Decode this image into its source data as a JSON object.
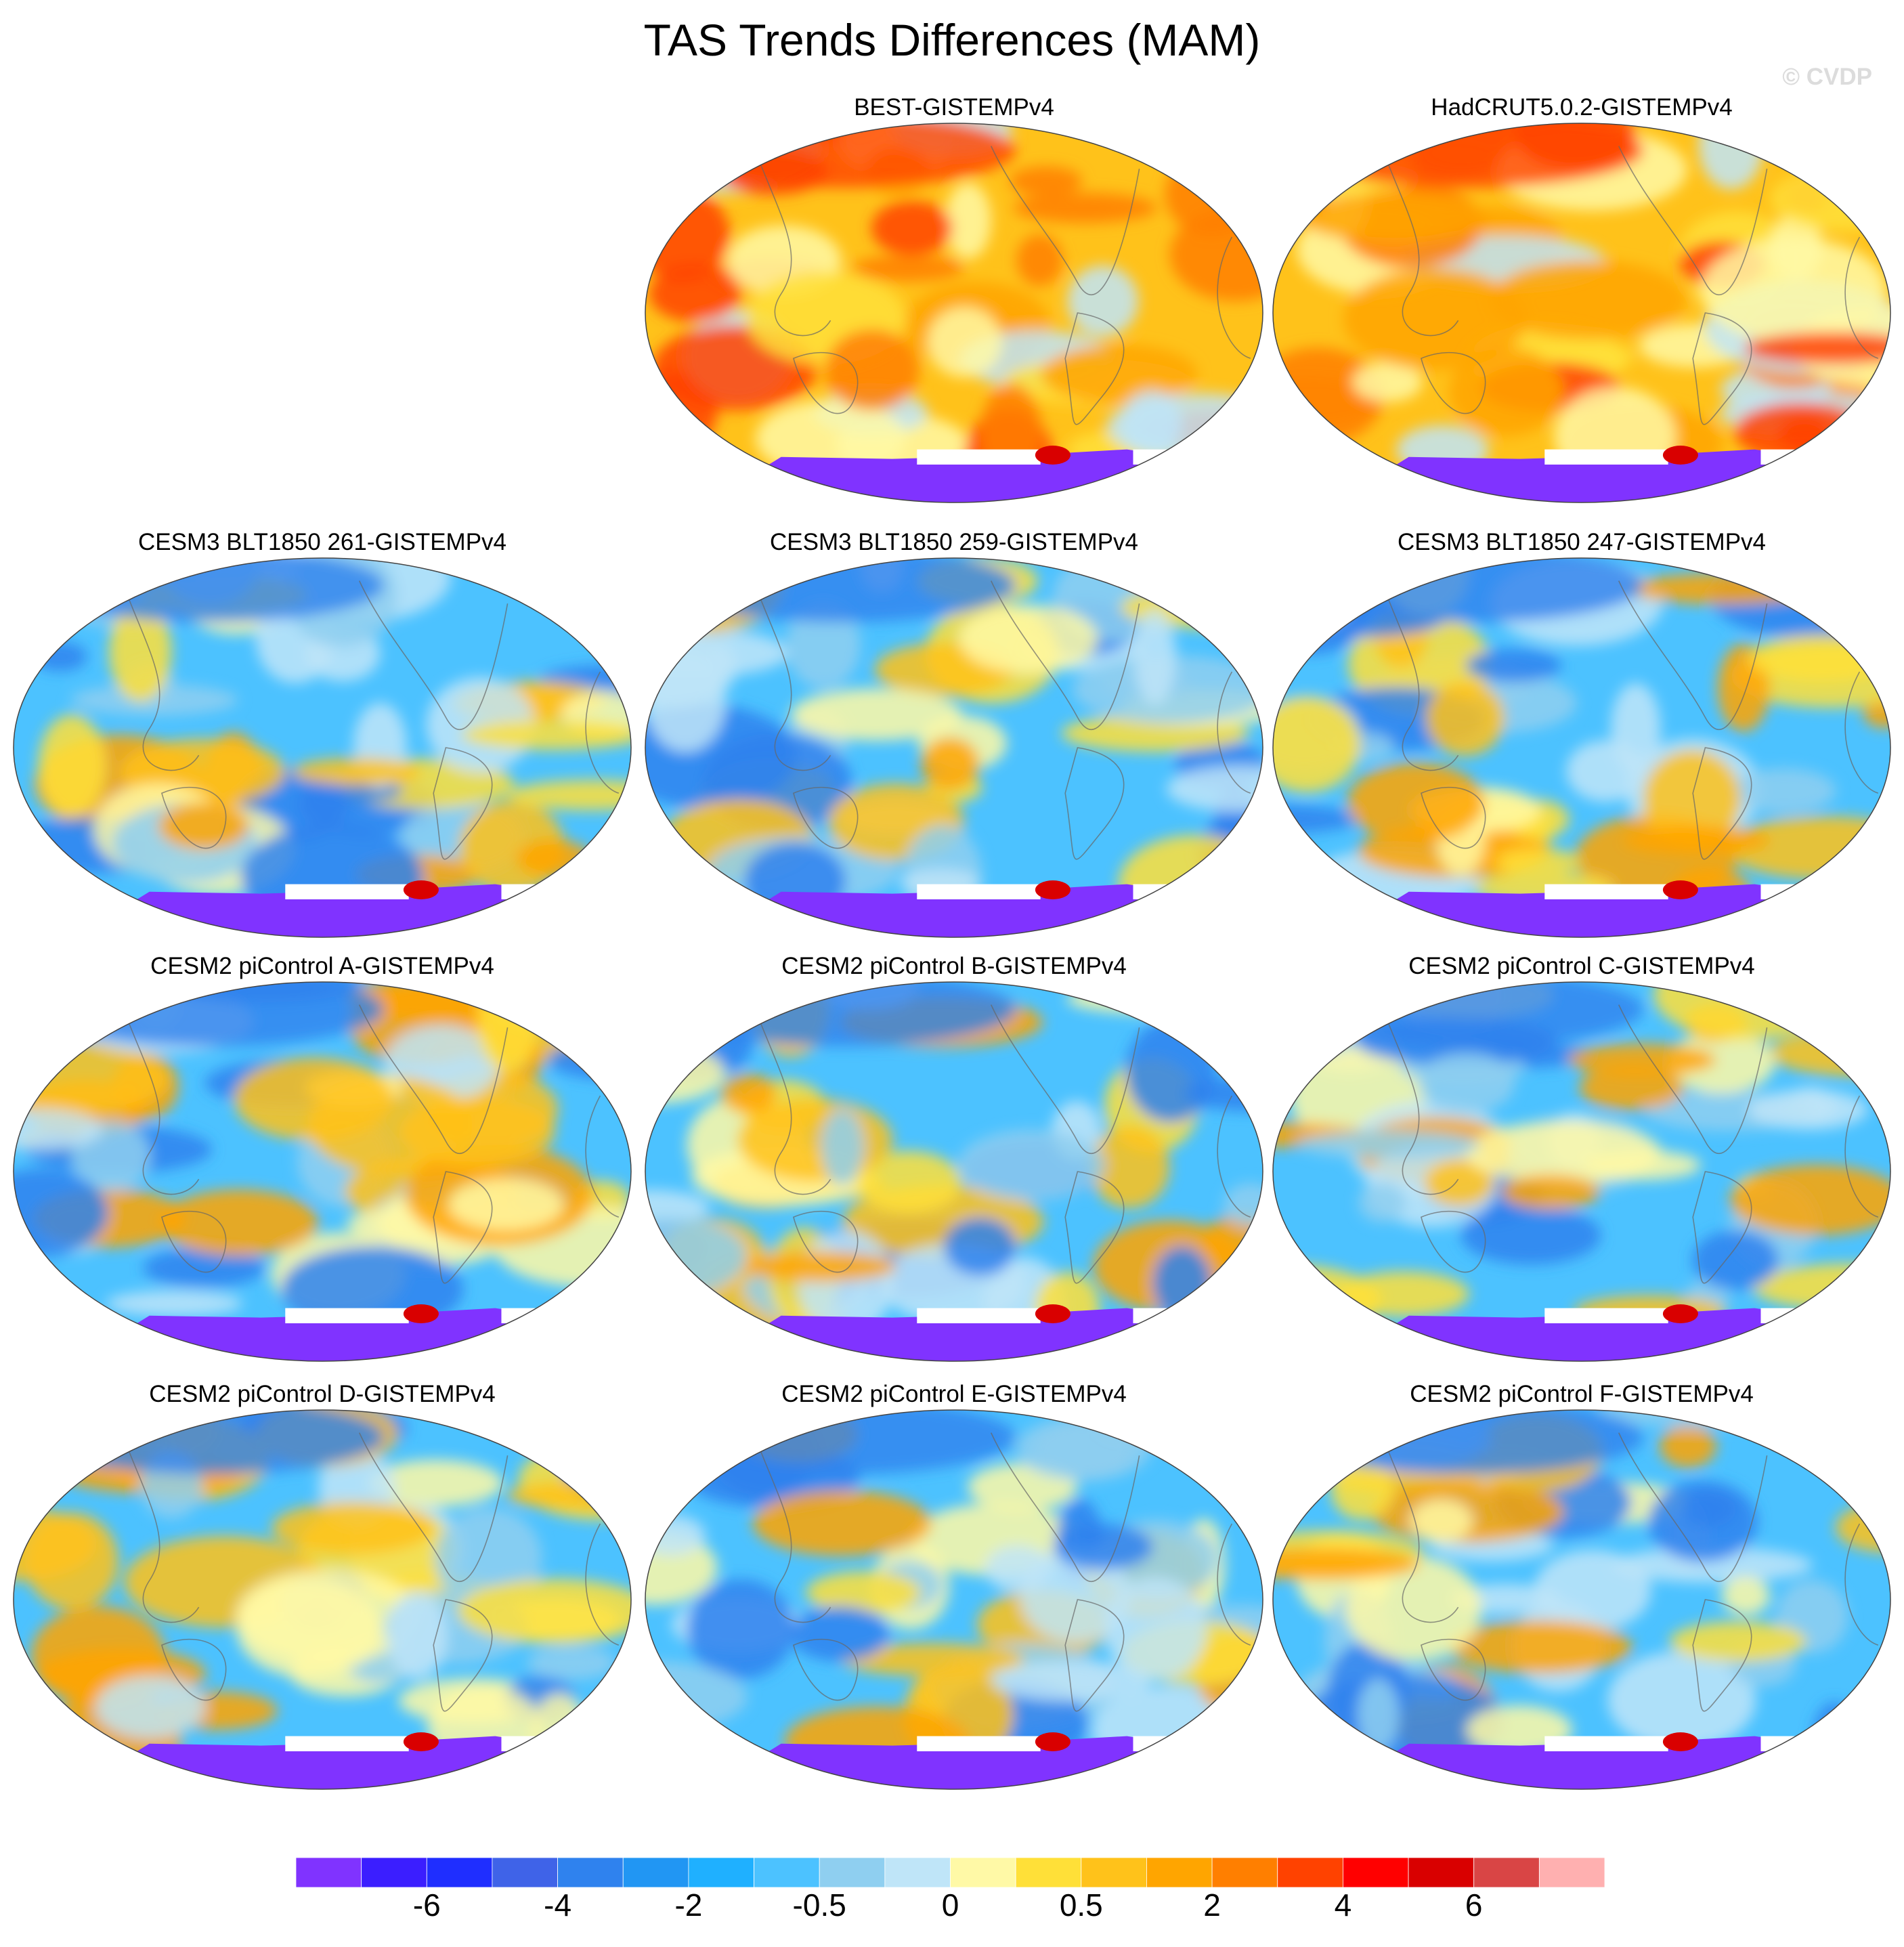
{
  "chart_data": {
    "type": "heatmap",
    "title": "TAS Trends Differences (MAM)",
    "credit": "© CVDP",
    "projection": "global map (Robinson-like), Pacific-centered",
    "panels": [
      {
        "id": "p1",
        "title": "BEST-GISTEMPv4",
        "row": 0,
        "col": 1,
        "regime": "warm"
      },
      {
        "id": "p2",
        "title": "HadCRUT5.0.2-GISTEMPv4",
        "row": 0,
        "col": 2,
        "regime": "warm"
      },
      {
        "id": "p3",
        "title": "CESM3 BLT1850 261-GISTEMPv4",
        "row": 1,
        "col": 0,
        "regime": "cool"
      },
      {
        "id": "p4",
        "title": "CESM3 BLT1850 259-GISTEMPv4",
        "row": 1,
        "col": 1,
        "regime": "cool"
      },
      {
        "id": "p5",
        "title": "CESM3 BLT1850 247-GISTEMPv4",
        "row": 1,
        "col": 2,
        "regime": "cool"
      },
      {
        "id": "p6",
        "title": "CESM2 piControl A-GISTEMPv4",
        "row": 2,
        "col": 0,
        "regime": "cool"
      },
      {
        "id": "p7",
        "title": "CESM2 piControl B-GISTEMPv4",
        "row": 2,
        "col": 1,
        "regime": "cool"
      },
      {
        "id": "p8",
        "title": "CESM2 piControl C-GISTEMPv4",
        "row": 2,
        "col": 2,
        "regime": "cool"
      },
      {
        "id": "p9",
        "title": "CESM2 piControl D-GISTEMPv4",
        "row": 3,
        "col": 0,
        "regime": "cool"
      },
      {
        "id": "p10",
        "title": "CESM2 piControl E-GISTEMPv4",
        "row": 3,
        "col": 1,
        "regime": "cool"
      },
      {
        "id": "p11",
        "title": "CESM2 piControl F-GISTEMPv4",
        "row": 3,
        "col": 2,
        "regime": "cool"
      }
    ],
    "colorbar": {
      "colors": [
        "#8033ff",
        "#3b1eff",
        "#1f2eff",
        "#3f63e8",
        "#2f82ee",
        "#2196f3",
        "#1fb0ff",
        "#4cc2ff",
        "#8fcff0",
        "#bfe5f8",
        "#fff9a6",
        "#ffe038",
        "#ffc21a",
        "#ffa500",
        "#ff7f00",
        "#ff4200",
        "#ff0000",
        "#d90000",
        "#d94545",
        "#ffb0b0"
      ],
      "tick_labels": [
        "-6",
        "-4",
        "-2",
        "-0.5",
        "0",
        "0.5",
        "2",
        "4",
        "6"
      ],
      "tick_boundary_index": [
        2,
        4,
        6,
        8,
        10,
        12,
        14,
        16,
        18
      ]
    },
    "regime_colors": {
      "warm": {
        "base": "#ffc21a",
        "blobs": [
          "#ffa500",
          "#ff7f00",
          "#ffe038",
          "#fff9a6",
          "#bfe5f8",
          "#ff4200"
        ]
      },
      "cool": {
        "base": "#4cc2ff",
        "blobs": [
          "#bfe5f8",
          "#8fcff0",
          "#fff9a6",
          "#ffe038",
          "#ffc21a",
          "#2f82ee",
          "#ffa500"
        ]
      },
      "antarctica": "#8033ff",
      "pole_feature": "#d90000"
    }
  }
}
